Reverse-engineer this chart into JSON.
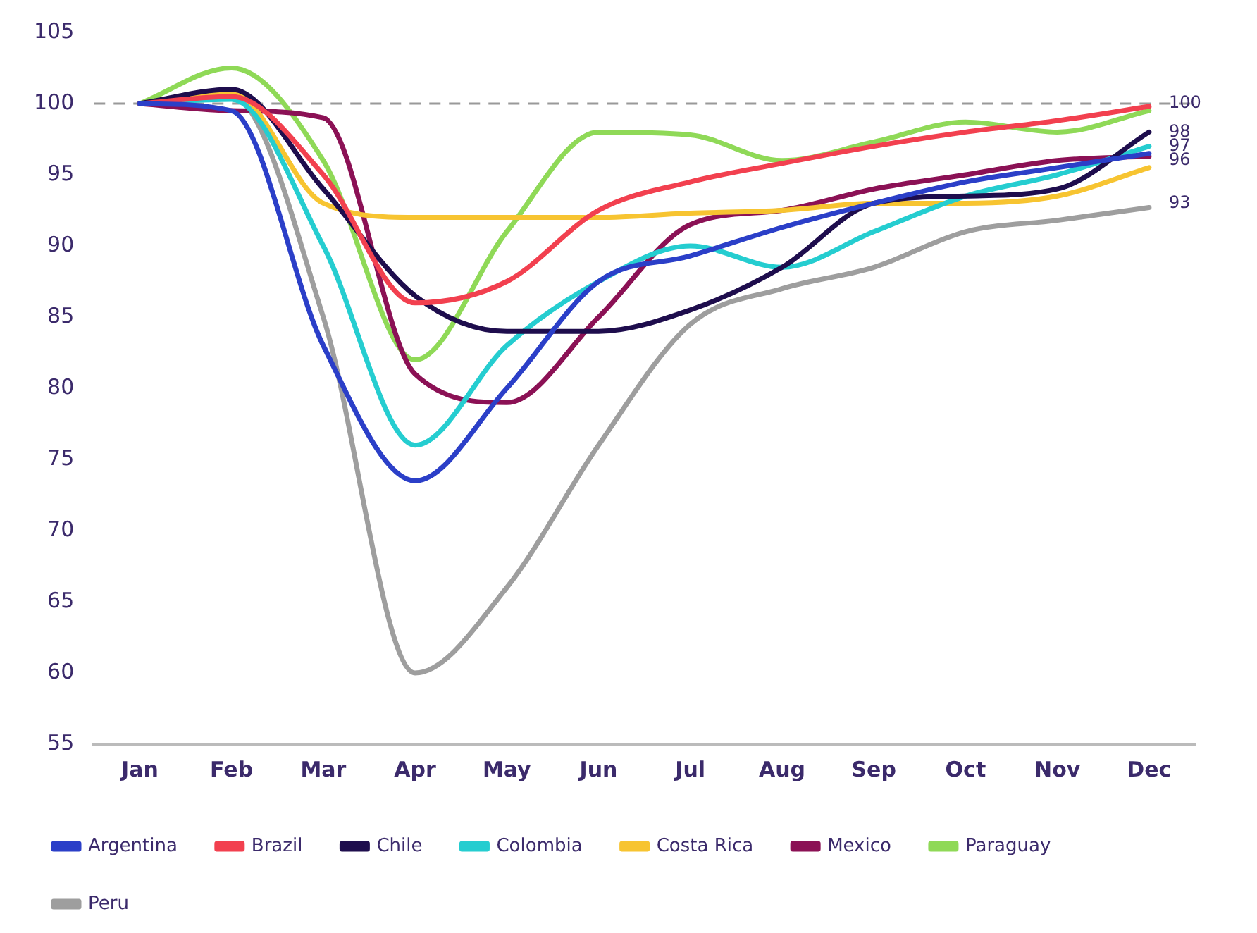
{
  "chart_data": {
    "type": "line",
    "categories": [
      "Jan",
      "Feb",
      "Mar",
      "Apr",
      "May",
      "Jun",
      "Jul",
      "Aug",
      "Sep",
      "Oct",
      "Nov",
      "Dec"
    ],
    "series": [
      {
        "name": "Argentina",
        "color": "#2b3fc8",
        "values": [
          100,
          99.5,
          83,
          73.5,
          80,
          87.5,
          89.3,
          91.3,
          93,
          94.5,
          95.5,
          96.5
        ]
      },
      {
        "name": "Brazil",
        "color": "#f2404f",
        "values": [
          100,
          100.5,
          95,
          86,
          87.5,
          92.5,
          94.5,
          95.8,
          97,
          98,
          98.8,
          99.8
        ]
      },
      {
        "name": "Chile",
        "color": "#1e0d4d",
        "values": [
          100,
          101,
          94,
          86.5,
          84,
          84,
          85.5,
          88.5,
          93,
          93.5,
          94,
          98
        ]
      },
      {
        "name": "Colombia",
        "color": "#25cdd0",
        "values": [
          100,
          100.3,
          90,
          76,
          83,
          87.5,
          90,
          88.5,
          91,
          93.5,
          95,
          97
        ]
      },
      {
        "name": "Costa Rica",
        "color": "#f7c431",
        "values": [
          100,
          100.8,
          93,
          92,
          92,
          92,
          92.3,
          92.5,
          93,
          93,
          93.5,
          95.5
        ]
      },
      {
        "name": "Mexico",
        "color": "#8b1155",
        "values": [
          100,
          99.5,
          99,
          81,
          79,
          85,
          91.5,
          92.5,
          94,
          95,
          96,
          96.3
        ]
      },
      {
        "name": "Paraguay",
        "color": "#8fd957",
        "values": [
          100,
          102.5,
          96,
          82,
          91,
          98,
          97.8,
          96,
          97.3,
          98.7,
          98,
          99.5
        ]
      },
      {
        "name": "Peru",
        "color": "#9e9e9e",
        "values": [
          100,
          100.5,
          85,
          60,
          66,
          76,
          84.5,
          87,
          88.5,
          91,
          91.8,
          92.7
        ]
      }
    ],
    "ylim": [
      55,
      105
    ],
    "yticks": [
      55,
      60,
      65,
      70,
      75,
      80,
      85,
      90,
      95,
      100,
      105
    ],
    "grid": false,
    "legend": "bottom left",
    "marker": "none",
    "line_style": "solid",
    "ref_lines": [
      {
        "axis": "y",
        "value": 100,
        "color": "#999999",
        "line_style": "dashed"
      }
    ],
    "annotations": [
      {
        "text": "100",
        "x": "Dec",
        "y": 100
      },
      {
        "text": "98",
        "x": "Dec",
        "y": 98
      },
      {
        "text": "97",
        "x": "Dec",
        "y": 97
      },
      {
        "text": "96",
        "x": "Dec",
        "y": 96
      },
      {
        "text": "93",
        "x": "Dec",
        "y": 93
      }
    ]
  }
}
